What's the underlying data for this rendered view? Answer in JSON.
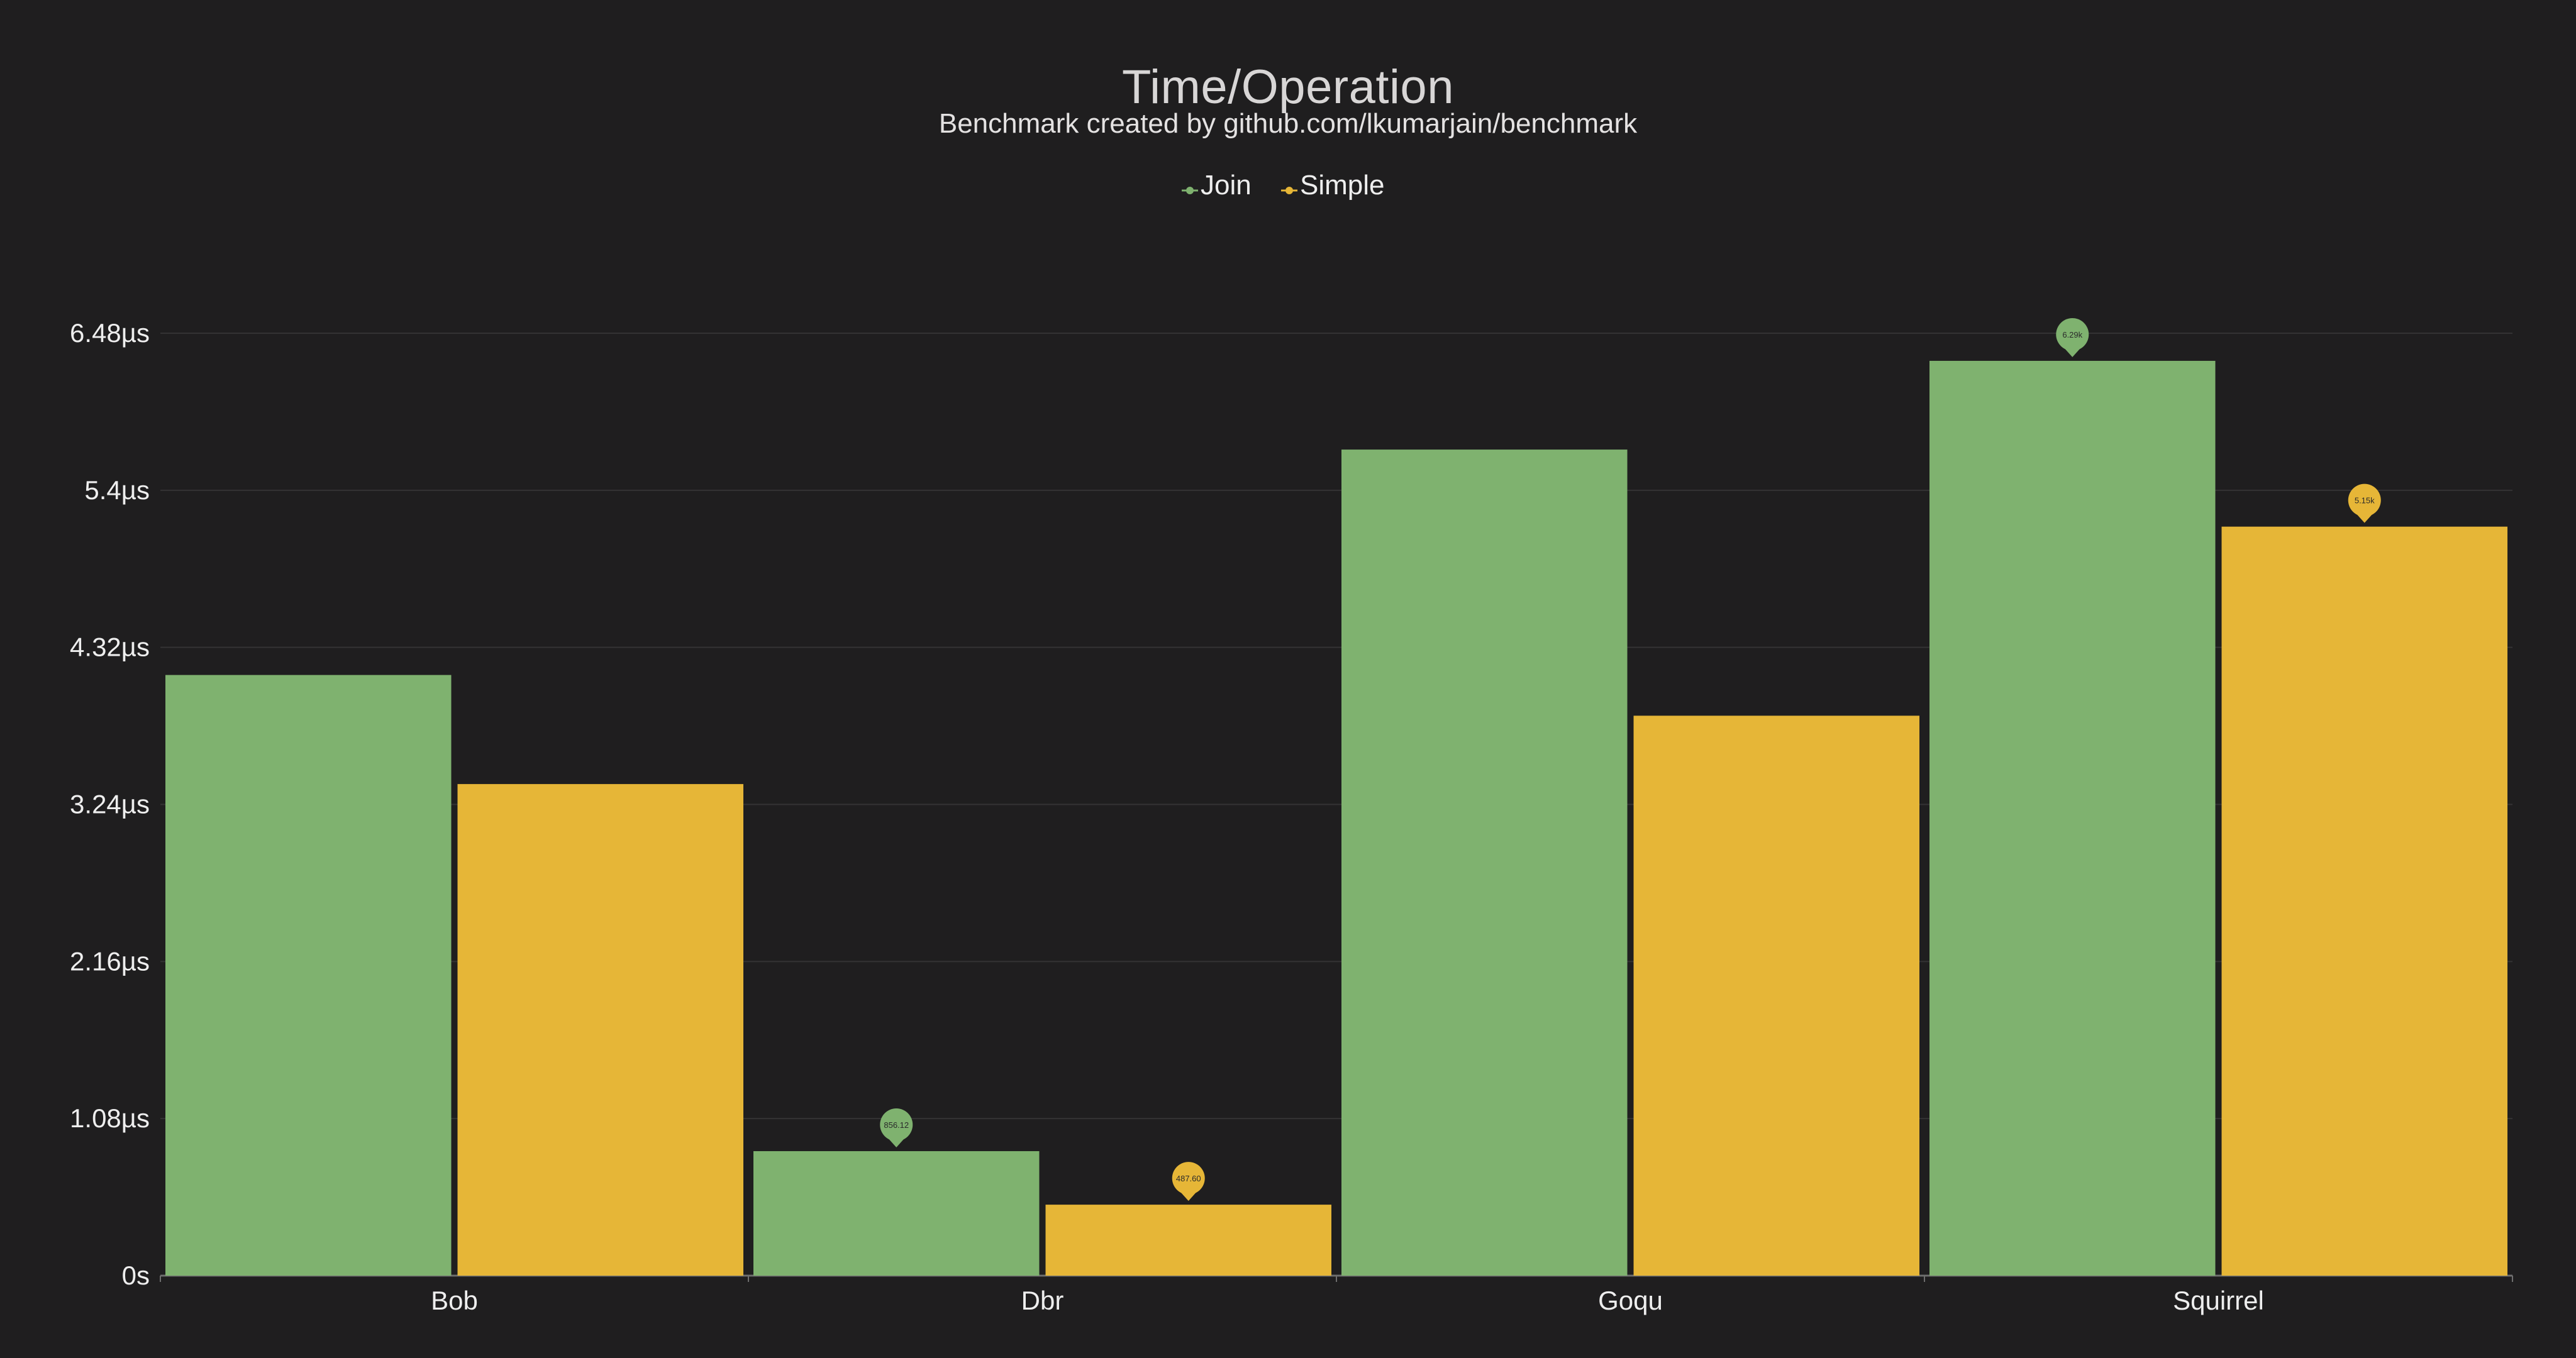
{
  "chart_data": {
    "type": "bar",
    "title": "Time/Operation",
    "subtitle": "Benchmark created by github.com/lkumarjain/benchmark",
    "xlabel": "",
    "ylabel": "",
    "categories": [
      "Bob",
      "Dbr",
      "Goqu",
      "Squirrel"
    ],
    "series": [
      {
        "name": "Join",
        "color": "#7fb26f",
        "values": [
          4.13,
          0.856,
          5.68,
          6.29
        ]
      },
      {
        "name": "Simple",
        "color": "#e6b637",
        "values": [
          3.38,
          0.488,
          3.85,
          5.15
        ]
      }
    ],
    "ylim": [
      0,
      6.48
    ],
    "yticks": [
      "0s",
      "1.08µs",
      "2.16µs",
      "3.24µs",
      "4.32µs",
      "5.4µs",
      "6.48µs"
    ],
    "yticks_values": [
      0,
      1.08,
      2.16,
      3.24,
      4.32,
      5.4,
      6.48
    ],
    "grid": true,
    "legend_position": "top-center",
    "markers": [
      {
        "series": 0,
        "category": 1,
        "label": "856.12"
      },
      {
        "series": 1,
        "category": 1,
        "label": "487.60"
      },
      {
        "series": 0,
        "category": 3,
        "label": "6.29k"
      },
      {
        "series": 1,
        "category": 3,
        "label": "5.15k"
      }
    ]
  },
  "colors": {
    "background": "#1f1e1f",
    "grid": "#343334",
    "axis": "#6e6e6e",
    "text": "#eeeeee"
  }
}
